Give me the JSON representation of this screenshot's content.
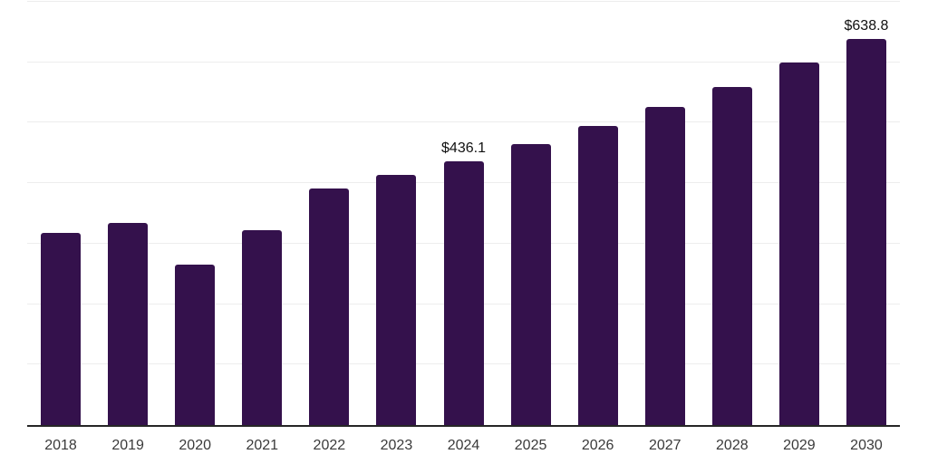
{
  "chart_data": {
    "type": "bar",
    "title": "",
    "xlabel": "",
    "ylabel": "",
    "categories": [
      "2018",
      "2019",
      "2020",
      "2021",
      "2022",
      "2023",
      "2024",
      "2025",
      "2026",
      "2027",
      "2028",
      "2029",
      "2030"
    ],
    "values": [
      318.0,
      334.8,
      265.0,
      322.4,
      390.8,
      413.2,
      436.1,
      465.0,
      494.8,
      526.5,
      559.8,
      599.4,
      638.8
    ],
    "labeled_points": [
      {
        "category": "2024",
        "label": "$436.1"
      },
      {
        "category": "2030",
        "label": "$638.8"
      }
    ],
    "ylim": [
      0,
      700
    ],
    "gridline_step": 100,
    "grid_visible": true,
    "y_axis_labels_visible": false,
    "legend_position": "none",
    "colors": {
      "bar": "#34114C",
      "gridline": "#ededed",
      "axis": "#262626",
      "tick_label": "#3a3a3a",
      "value_label": "#111111",
      "background": "#ffffff"
    }
  }
}
